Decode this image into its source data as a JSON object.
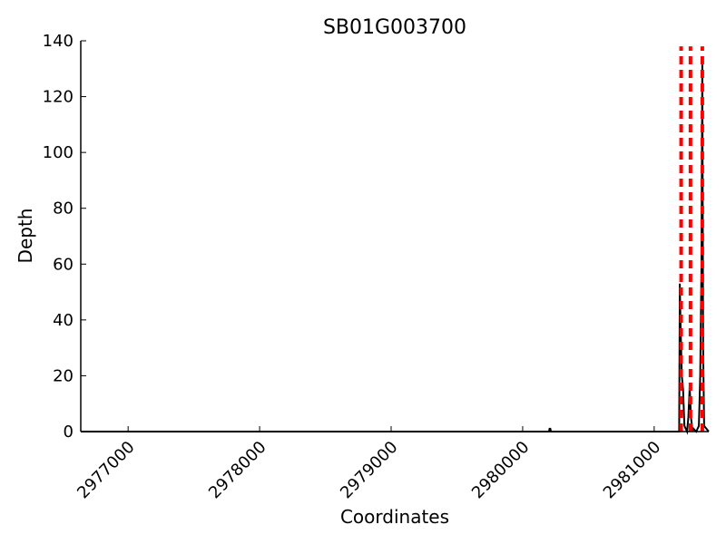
{
  "chart_data": {
    "type": "line",
    "title": "SB01G003700",
    "xlabel": "Coordinates",
    "ylabel": "Depth",
    "xlim": [
      2976640,
      2981415
    ],
    "ylim": [
      0,
      140
    ],
    "xticks": [
      2977000,
      2978000,
      2979000,
      2980000,
      2981000
    ],
    "xtick_labels": [
      "2977000",
      "2978000",
      "2979000",
      "2980000",
      "2981000"
    ],
    "yticks": [
      0,
      20,
      40,
      60,
      80,
      100,
      120,
      140
    ],
    "ytick_labels": [
      "0",
      "20",
      "40",
      "60",
      "80",
      "100",
      "120",
      "140"
    ],
    "grid": false,
    "series": [
      {
        "color": "#000000",
        "x": [
          2976640,
          2980200,
          2980205,
          2980210,
          2980215,
          2981190,
          2981195,
          2981200,
          2981210,
          2981220,
          2981230,
          2981250,
          2981260,
          2981270,
          2981280,
          2981285,
          2981290,
          2981300,
          2981320,
          2981340,
          2981350,
          2981360,
          2981366,
          2981372,
          2981380,
          2981415
        ],
        "y": [
          0,
          0,
          1,
          1,
          0,
          0,
          53,
          40,
          20,
          15,
          2,
          0,
          5,
          16,
          5,
          3,
          0,
          1,
          0,
          2,
          20,
          60,
          133,
          30,
          2,
          0
        ]
      }
    ],
    "vlines": {
      "color": "#ff0000",
      "style": "dashed",
      "x": [
        2981205,
        2981276,
        2981366
      ],
      "top": 138
    }
  }
}
